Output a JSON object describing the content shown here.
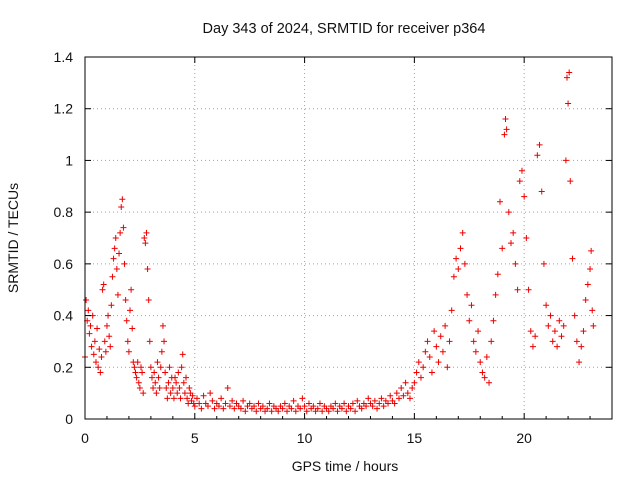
{
  "chart_data": {
    "type": "scatter",
    "title": "Day 343 of 2024, SRMTID for receiver p364",
    "xlabel": "GPS time / hours",
    "ylabel": "SRMTID / TECUs",
    "xlim": [
      0,
      24
    ],
    "ylim": [
      0,
      1.4
    ],
    "x_ticks": [
      "0",
      "5",
      "10",
      "15",
      "20"
    ],
    "y_ticks": [
      "0",
      "0.2",
      "0.4",
      "0.6",
      "0.8",
      "1",
      "1.2",
      "1.4"
    ],
    "grid": true,
    "marker": "plus",
    "color": "#ee0000",
    "series": [
      {
        "name": "p364",
        "points": [
          [
            0.0,
            0.24
          ],
          [
            0.05,
            0.46
          ],
          [
            0.1,
            0.38
          ],
          [
            0.15,
            0.42
          ],
          [
            0.2,
            0.33
          ],
          [
            0.25,
            0.36
          ],
          [
            0.3,
            0.28
          ],
          [
            0.35,
            0.4
          ],
          [
            0.4,
            0.25
          ],
          [
            0.45,
            0.3
          ],
          [
            0.5,
            0.22
          ],
          [
            0.55,
            0.35
          ],
          [
            0.6,
            0.2
          ],
          [
            0.65,
            0.27
          ],
          [
            0.7,
            0.18
          ],
          [
            0.75,
            0.24
          ],
          [
            0.8,
            0.5
          ],
          [
            0.85,
            0.52
          ],
          [
            0.9,
            0.3
          ],
          [
            0.95,
            0.26
          ],
          [
            1.0,
            0.36
          ],
          [
            1.05,
            0.4
          ],
          [
            1.1,
            0.32
          ],
          [
            1.15,
            0.28
          ],
          [
            1.2,
            0.44
          ],
          [
            1.25,
            0.55
          ],
          [
            1.3,
            0.62
          ],
          [
            1.35,
            0.66
          ],
          [
            1.4,
            0.7
          ],
          [
            1.45,
            0.58
          ],
          [
            1.5,
            0.48
          ],
          [
            1.55,
            0.64
          ],
          [
            1.6,
            0.72
          ],
          [
            1.65,
            0.82
          ],
          [
            1.7,
            0.85
          ],
          [
            1.75,
            0.74
          ],
          [
            1.8,
            0.6
          ],
          [
            1.85,
            0.46
          ],
          [
            1.9,
            0.38
          ],
          [
            1.95,
            0.3
          ],
          [
            2.0,
            0.26
          ],
          [
            2.05,
            0.42
          ],
          [
            2.1,
            0.5
          ],
          [
            2.15,
            0.35
          ],
          [
            2.2,
            0.22
          ],
          [
            2.25,
            0.2
          ],
          [
            2.3,
            0.18
          ],
          [
            2.35,
            0.16
          ],
          [
            2.4,
            0.22
          ],
          [
            2.45,
            0.14
          ],
          [
            2.5,
            0.12
          ],
          [
            2.55,
            0.2
          ],
          [
            2.6,
            0.18
          ],
          [
            2.65,
            0.1
          ],
          [
            2.7,
            0.7
          ],
          [
            2.75,
            0.68
          ],
          [
            2.8,
            0.72
          ],
          [
            2.85,
            0.58
          ],
          [
            2.9,
            0.46
          ],
          [
            2.95,
            0.3
          ],
          [
            3.0,
            0.2
          ],
          [
            3.05,
            0.16
          ],
          [
            3.1,
            0.12
          ],
          [
            3.15,
            0.18
          ],
          [
            3.2,
            0.14
          ],
          [
            3.25,
            0.1
          ],
          [
            3.3,
            0.22
          ],
          [
            3.35,
            0.16
          ],
          [
            3.4,
            0.12
          ],
          [
            3.45,
            0.2
          ],
          [
            3.5,
            0.26
          ],
          [
            3.55,
            0.36
          ],
          [
            3.6,
            0.3
          ],
          [
            3.65,
            0.18
          ],
          [
            3.7,
            0.12
          ],
          [
            3.75,
            0.08
          ],
          [
            3.8,
            0.14
          ],
          [
            3.85,
            0.2
          ],
          [
            3.9,
            0.1
          ],
          [
            3.95,
            0.16
          ],
          [
            4.0,
            0.12
          ],
          [
            4.05,
            0.08
          ],
          [
            4.1,
            0.16
          ],
          [
            4.15,
            0.14
          ],
          [
            4.2,
            0.1
          ],
          [
            4.25,
            0.18
          ],
          [
            4.3,
            0.12
          ],
          [
            4.35,
            0.08
          ],
          [
            4.4,
            0.2
          ],
          [
            4.45,
            0.25
          ],
          [
            4.5,
            0.14
          ],
          [
            4.55,
            0.1
          ],
          [
            4.6,
            0.16
          ],
          [
            4.65,
            0.08
          ],
          [
            4.7,
            0.06
          ],
          [
            4.75,
            0.12
          ],
          [
            4.8,
            0.1
          ],
          [
            4.85,
            0.07
          ],
          [
            4.9,
            0.09
          ],
          [
            4.95,
            0.06
          ],
          [
            5.0,
            0.05
          ],
          [
            5.1,
            0.08
          ],
          [
            5.2,
            0.06
          ],
          [
            5.3,
            0.04
          ],
          [
            5.4,
            0.09
          ],
          [
            5.5,
            0.06
          ],
          [
            5.6,
            0.05
          ],
          [
            5.7,
            0.1
          ],
          [
            5.8,
            0.07
          ],
          [
            5.9,
            0.04
          ],
          [
            6.0,
            0.06
          ],
          [
            6.1,
            0.05
          ],
          [
            6.2,
            0.08
          ],
          [
            6.3,
            0.04
          ],
          [
            6.4,
            0.06
          ],
          [
            6.5,
            0.12
          ],
          [
            6.6,
            0.05
          ],
          [
            6.7,
            0.07
          ],
          [
            6.8,
            0.04
          ],
          [
            6.9,
            0.06
          ],
          [
            7.0,
            0.05
          ],
          [
            7.1,
            0.04
          ],
          [
            7.2,
            0.07
          ],
          [
            7.3,
            0.03
          ],
          [
            7.4,
            0.05
          ],
          [
            7.5,
            0.06
          ],
          [
            7.6,
            0.04
          ],
          [
            7.7,
            0.05
          ],
          [
            7.8,
            0.03
          ],
          [
            7.9,
            0.06
          ],
          [
            8.0,
            0.04
          ],
          [
            8.1,
            0.05
          ],
          [
            8.2,
            0.03
          ],
          [
            8.3,
            0.04
          ],
          [
            8.4,
            0.06
          ],
          [
            8.5,
            0.03
          ],
          [
            8.6,
            0.05
          ],
          [
            8.7,
            0.04
          ],
          [
            8.8,
            0.03
          ],
          [
            8.9,
            0.05
          ],
          [
            9.0,
            0.04
          ],
          [
            9.1,
            0.06
          ],
          [
            9.2,
            0.03
          ],
          [
            9.3,
            0.05
          ],
          [
            9.4,
            0.04
          ],
          [
            9.5,
            0.07
          ],
          [
            9.6,
            0.03
          ],
          [
            9.7,
            0.05
          ],
          [
            9.8,
            0.04
          ],
          [
            9.9,
            0.08
          ],
          [
            10.0,
            0.05
          ],
          [
            10.1,
            0.03
          ],
          [
            10.2,
            0.06
          ],
          [
            10.3,
            0.04
          ],
          [
            10.4,
            0.05
          ],
          [
            10.5,
            0.03
          ],
          [
            10.6,
            0.04
          ],
          [
            10.7,
            0.06
          ],
          [
            10.8,
            0.03
          ],
          [
            10.9,
            0.05
          ],
          [
            11.0,
            0.04
          ],
          [
            11.1,
            0.03
          ],
          [
            11.2,
            0.05
          ],
          [
            11.3,
            0.04
          ],
          [
            11.4,
            0.06
          ],
          [
            11.5,
            0.03
          ],
          [
            11.6,
            0.05
          ],
          [
            11.7,
            0.04
          ],
          [
            11.8,
            0.06
          ],
          [
            11.9,
            0.03
          ],
          [
            12.0,
            0.05
          ],
          [
            12.1,
            0.04
          ],
          [
            12.2,
            0.06
          ],
          [
            12.3,
            0.03
          ],
          [
            12.4,
            0.07
          ],
          [
            12.5,
            0.05
          ],
          [
            12.6,
            0.04
          ],
          [
            12.7,
            0.06
          ],
          [
            12.8,
            0.05
          ],
          [
            12.9,
            0.08
          ],
          [
            13.0,
            0.06
          ],
          [
            13.1,
            0.05
          ],
          [
            13.2,
            0.07
          ],
          [
            13.3,
            0.04
          ],
          [
            13.4,
            0.06
          ],
          [
            13.5,
            0.08
          ],
          [
            13.6,
            0.05
          ],
          [
            13.7,
            0.07
          ],
          [
            13.8,
            0.06
          ],
          [
            13.9,
            0.09
          ],
          [
            14.0,
            0.07
          ],
          [
            14.1,
            0.06
          ],
          [
            14.2,
            0.1
          ],
          [
            14.3,
            0.08
          ],
          [
            14.4,
            0.12
          ],
          [
            14.5,
            0.09
          ],
          [
            14.6,
            0.14
          ],
          [
            14.7,
            0.1
          ],
          [
            14.8,
            0.08
          ],
          [
            14.9,
            0.12
          ],
          [
            15.0,
            0.14
          ],
          [
            15.1,
            0.18
          ],
          [
            15.2,
            0.22
          ],
          [
            15.3,
            0.16
          ],
          [
            15.4,
            0.2
          ],
          [
            15.5,
            0.26
          ],
          [
            15.6,
            0.3
          ],
          [
            15.7,
            0.24
          ],
          [
            15.8,
            0.18
          ],
          [
            15.9,
            0.34
          ],
          [
            16.0,
            0.28
          ],
          [
            16.1,
            0.22
          ],
          [
            16.2,
            0.32
          ],
          [
            16.3,
            0.26
          ],
          [
            16.4,
            0.36
          ],
          [
            16.5,
            0.2
          ],
          [
            16.6,
            0.3
          ],
          [
            16.7,
            0.42
          ],
          [
            16.8,
            0.55
          ],
          [
            16.9,
            0.62
          ],
          [
            17.0,
            0.58
          ],
          [
            17.1,
            0.66
          ],
          [
            17.2,
            0.72
          ],
          [
            17.3,
            0.6
          ],
          [
            17.4,
            0.48
          ],
          [
            17.5,
            0.38
          ],
          [
            17.6,
            0.44
          ],
          [
            17.7,
            0.3
          ],
          [
            17.8,
            0.26
          ],
          [
            17.9,
            0.34
          ],
          [
            18.0,
            0.22
          ],
          [
            18.1,
            0.18
          ],
          [
            18.2,
            0.16
          ],
          [
            18.3,
            0.24
          ],
          [
            18.4,
            0.14
          ],
          [
            18.5,
            0.3
          ],
          [
            18.6,
            0.38
          ],
          [
            18.7,
            0.48
          ],
          [
            18.8,
            0.56
          ],
          [
            18.9,
            0.84
          ],
          [
            19.0,
            0.66
          ],
          [
            19.1,
            1.1
          ],
          [
            19.15,
            1.16
          ],
          [
            19.2,
            1.12
          ],
          [
            19.3,
            0.8
          ],
          [
            19.4,
            0.68
          ],
          [
            19.5,
            0.72
          ],
          [
            19.6,
            0.6
          ],
          [
            19.7,
            0.5
          ],
          [
            19.8,
            0.92
          ],
          [
            19.9,
            0.96
          ],
          [
            20.0,
            0.86
          ],
          [
            20.1,
            0.7
          ],
          [
            20.2,
            0.5
          ],
          [
            20.3,
            0.34
          ],
          [
            20.4,
            0.28
          ],
          [
            20.5,
            0.32
          ],
          [
            20.6,
            1.02
          ],
          [
            20.7,
            1.06
          ],
          [
            20.8,
            0.88
          ],
          [
            20.9,
            0.6
          ],
          [
            21.0,
            0.44
          ],
          [
            21.1,
            0.36
          ],
          [
            21.2,
            0.4
          ],
          [
            21.3,
            0.3
          ],
          [
            21.4,
            0.34
          ],
          [
            21.5,
            0.28
          ],
          [
            21.6,
            0.38
          ],
          [
            21.7,
            0.32
          ],
          [
            21.8,
            0.36
          ],
          [
            21.9,
            1.0
          ],
          [
            21.95,
            1.32
          ],
          [
            22.0,
            1.22
          ],
          [
            22.05,
            1.34
          ],
          [
            22.1,
            0.92
          ],
          [
            22.2,
            0.62
          ],
          [
            22.3,
            0.4
          ],
          [
            22.4,
            0.3
          ],
          [
            22.5,
            0.22
          ],
          [
            22.6,
            0.28
          ],
          [
            22.7,
            0.34
          ],
          [
            22.8,
            0.46
          ],
          [
            22.9,
            0.52
          ],
          [
            23.0,
            0.58
          ],
          [
            23.05,
            0.65
          ],
          [
            23.1,
            0.42
          ],
          [
            23.15,
            0.36
          ]
        ]
      }
    ]
  }
}
